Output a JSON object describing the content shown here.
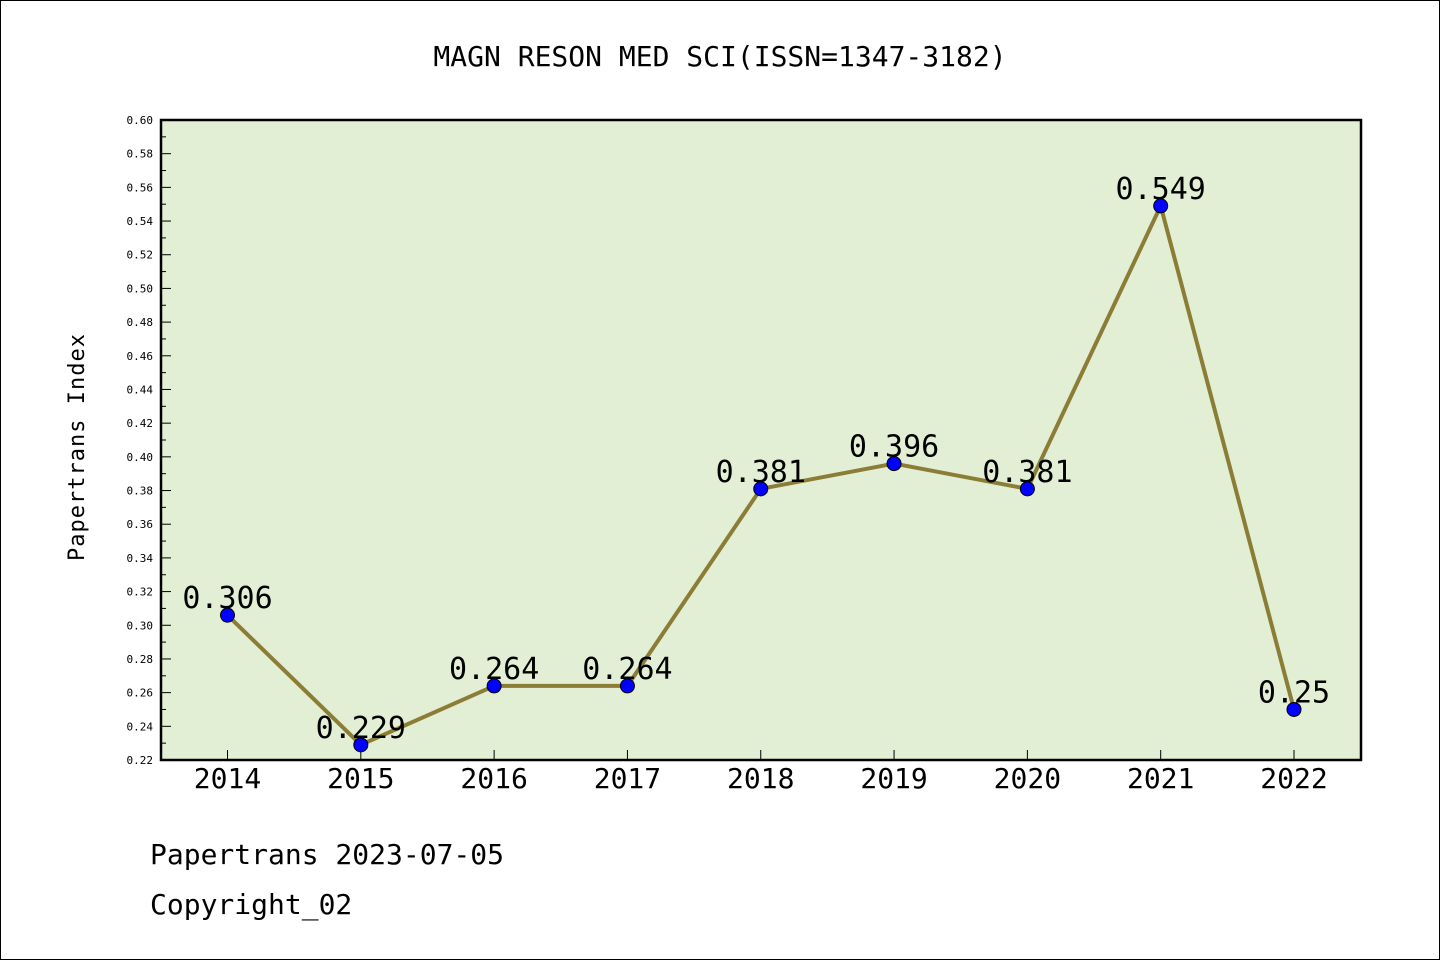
{
  "chart_data": {
    "type": "line",
    "title": "MAGN RESON MED SCI(ISSN=1347-3182)",
    "xlabel": "",
    "ylabel": "Papertrans Index",
    "categories": [
      "2014",
      "2015",
      "2016",
      "2017",
      "2018",
      "2019",
      "2020",
      "2021",
      "2022"
    ],
    "series": [
      {
        "values": [
          0.306,
          0.229,
          0.264,
          0.264,
          0.381,
          0.396,
          0.381,
          0.549,
          0.25
        ],
        "labels": [
          "0.306",
          "0.229",
          "0.264",
          "0.264",
          "0.381",
          "0.396",
          "0.381",
          "0.549",
          "0.25"
        ]
      }
    ],
    "ylim": [
      0.22,
      0.6
    ],
    "yticks": [
      "0.22",
      "0.24",
      "0.26",
      "0.28",
      "0.30",
      "0.32",
      "0.34",
      "0.36",
      "0.38",
      "0.40",
      "0.42",
      "0.44",
      "0.46",
      "0.48",
      "0.50",
      "0.52",
      "0.54",
      "0.56",
      "0.58",
      "0.60"
    ],
    "grid": false,
    "legend": "none",
    "colors": {
      "plot_background": "#e2efd5",
      "line": "#8b7d36",
      "marker": "#0000ff"
    }
  },
  "footer": {
    "line1": "Papertrans 2023-07-05",
    "line2": "Copyright_02"
  }
}
